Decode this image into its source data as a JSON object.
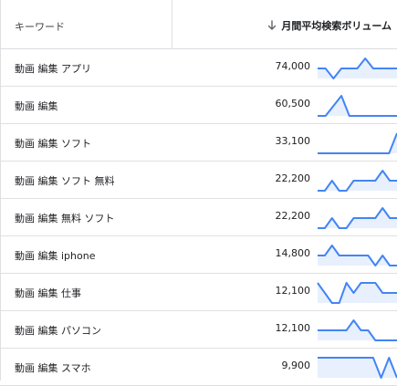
{
  "table": {
    "header": {
      "keyword_label": "キーワード",
      "volume_label": "月間平均検索ボリューム"
    },
    "rows": [
      {
        "keyword": "動画 編集 アプリ",
        "volume": "74,000",
        "trend": [
          0,
          0,
          -1,
          0,
          0,
          0,
          1,
          0,
          0,
          0,
          0
        ]
      },
      {
        "keyword": "動画 編集",
        "volume": "60,500",
        "trend": [
          0,
          0,
          1,
          2,
          0,
          0,
          0,
          0,
          0,
          0,
          0
        ]
      },
      {
        "keyword": "動画 編集 ソフト",
        "volume": "33,100",
        "trend": [
          0,
          0,
          0,
          0,
          0,
          0,
          0,
          0,
          0,
          0,
          3
        ]
      },
      {
        "keyword": "動画 編集 ソフト 無料",
        "volume": "22,200",
        "trend": [
          0,
          0,
          1,
          0,
          0,
          1,
          1,
          1,
          1,
          2,
          1,
          1
        ]
      },
      {
        "keyword": "動画 編集 無料 ソフト",
        "volume": "22,200",
        "trend": [
          0,
          0,
          1,
          0,
          0,
          1,
          1,
          1,
          1,
          2,
          1,
          1
        ]
      },
      {
        "keyword": "動画 編集 iphone",
        "volume": "14,800",
        "trend": [
          1,
          1,
          2,
          1,
          1,
          1,
          1,
          1,
          0,
          1,
          0,
          0
        ]
      },
      {
        "keyword": "動画 編集 仕事",
        "volume": "12,100",
        "trend": [
          2,
          1,
          0,
          0,
          2,
          1,
          2,
          2,
          2,
          1,
          1,
          1
        ]
      },
      {
        "keyword": "動画 編集 パソコン",
        "volume": "12,100",
        "trend": [
          1,
          1,
          1,
          1,
          1,
          2,
          1,
          1,
          0,
          0,
          0,
          0
        ]
      },
      {
        "keyword": "動画 編集 スマホ",
        "volume": "9,900",
        "trend": [
          2,
          2,
          2,
          2,
          2,
          2,
          2,
          2,
          0,
          2,
          0
        ]
      }
    ]
  },
  "colors": {
    "spark_line": "#4285f4",
    "spark_fill": "#e8f0fe"
  }
}
